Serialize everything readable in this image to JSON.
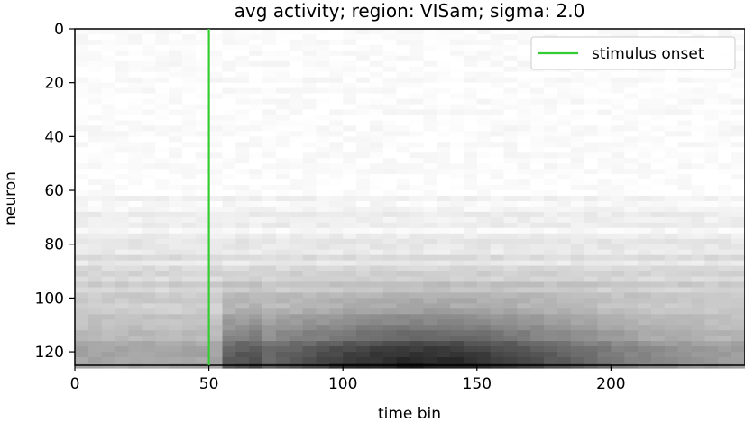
{
  "chart_data": {
    "type": "heatmap",
    "title": "avg activity; region: VISam; sigma: 2.0",
    "xlabel": "time bin",
    "ylabel": "neuron",
    "xlim": [
      0,
      250
    ],
    "ylim": [
      125,
      0
    ],
    "y_inverted": true,
    "xticks": [
      0,
      50,
      100,
      150,
      200
    ],
    "yticks": [
      0,
      20,
      40,
      60,
      80,
      100,
      120
    ],
    "n_time_bins": 250,
    "n_neurons": 125,
    "colormap": "greys",
    "stimulus_onset": 50,
    "legend": {
      "entries": [
        {
          "name": "stimulus onset",
          "color": "#33cc33"
        }
      ],
      "placement": "top-right"
    },
    "grid": false
  }
}
